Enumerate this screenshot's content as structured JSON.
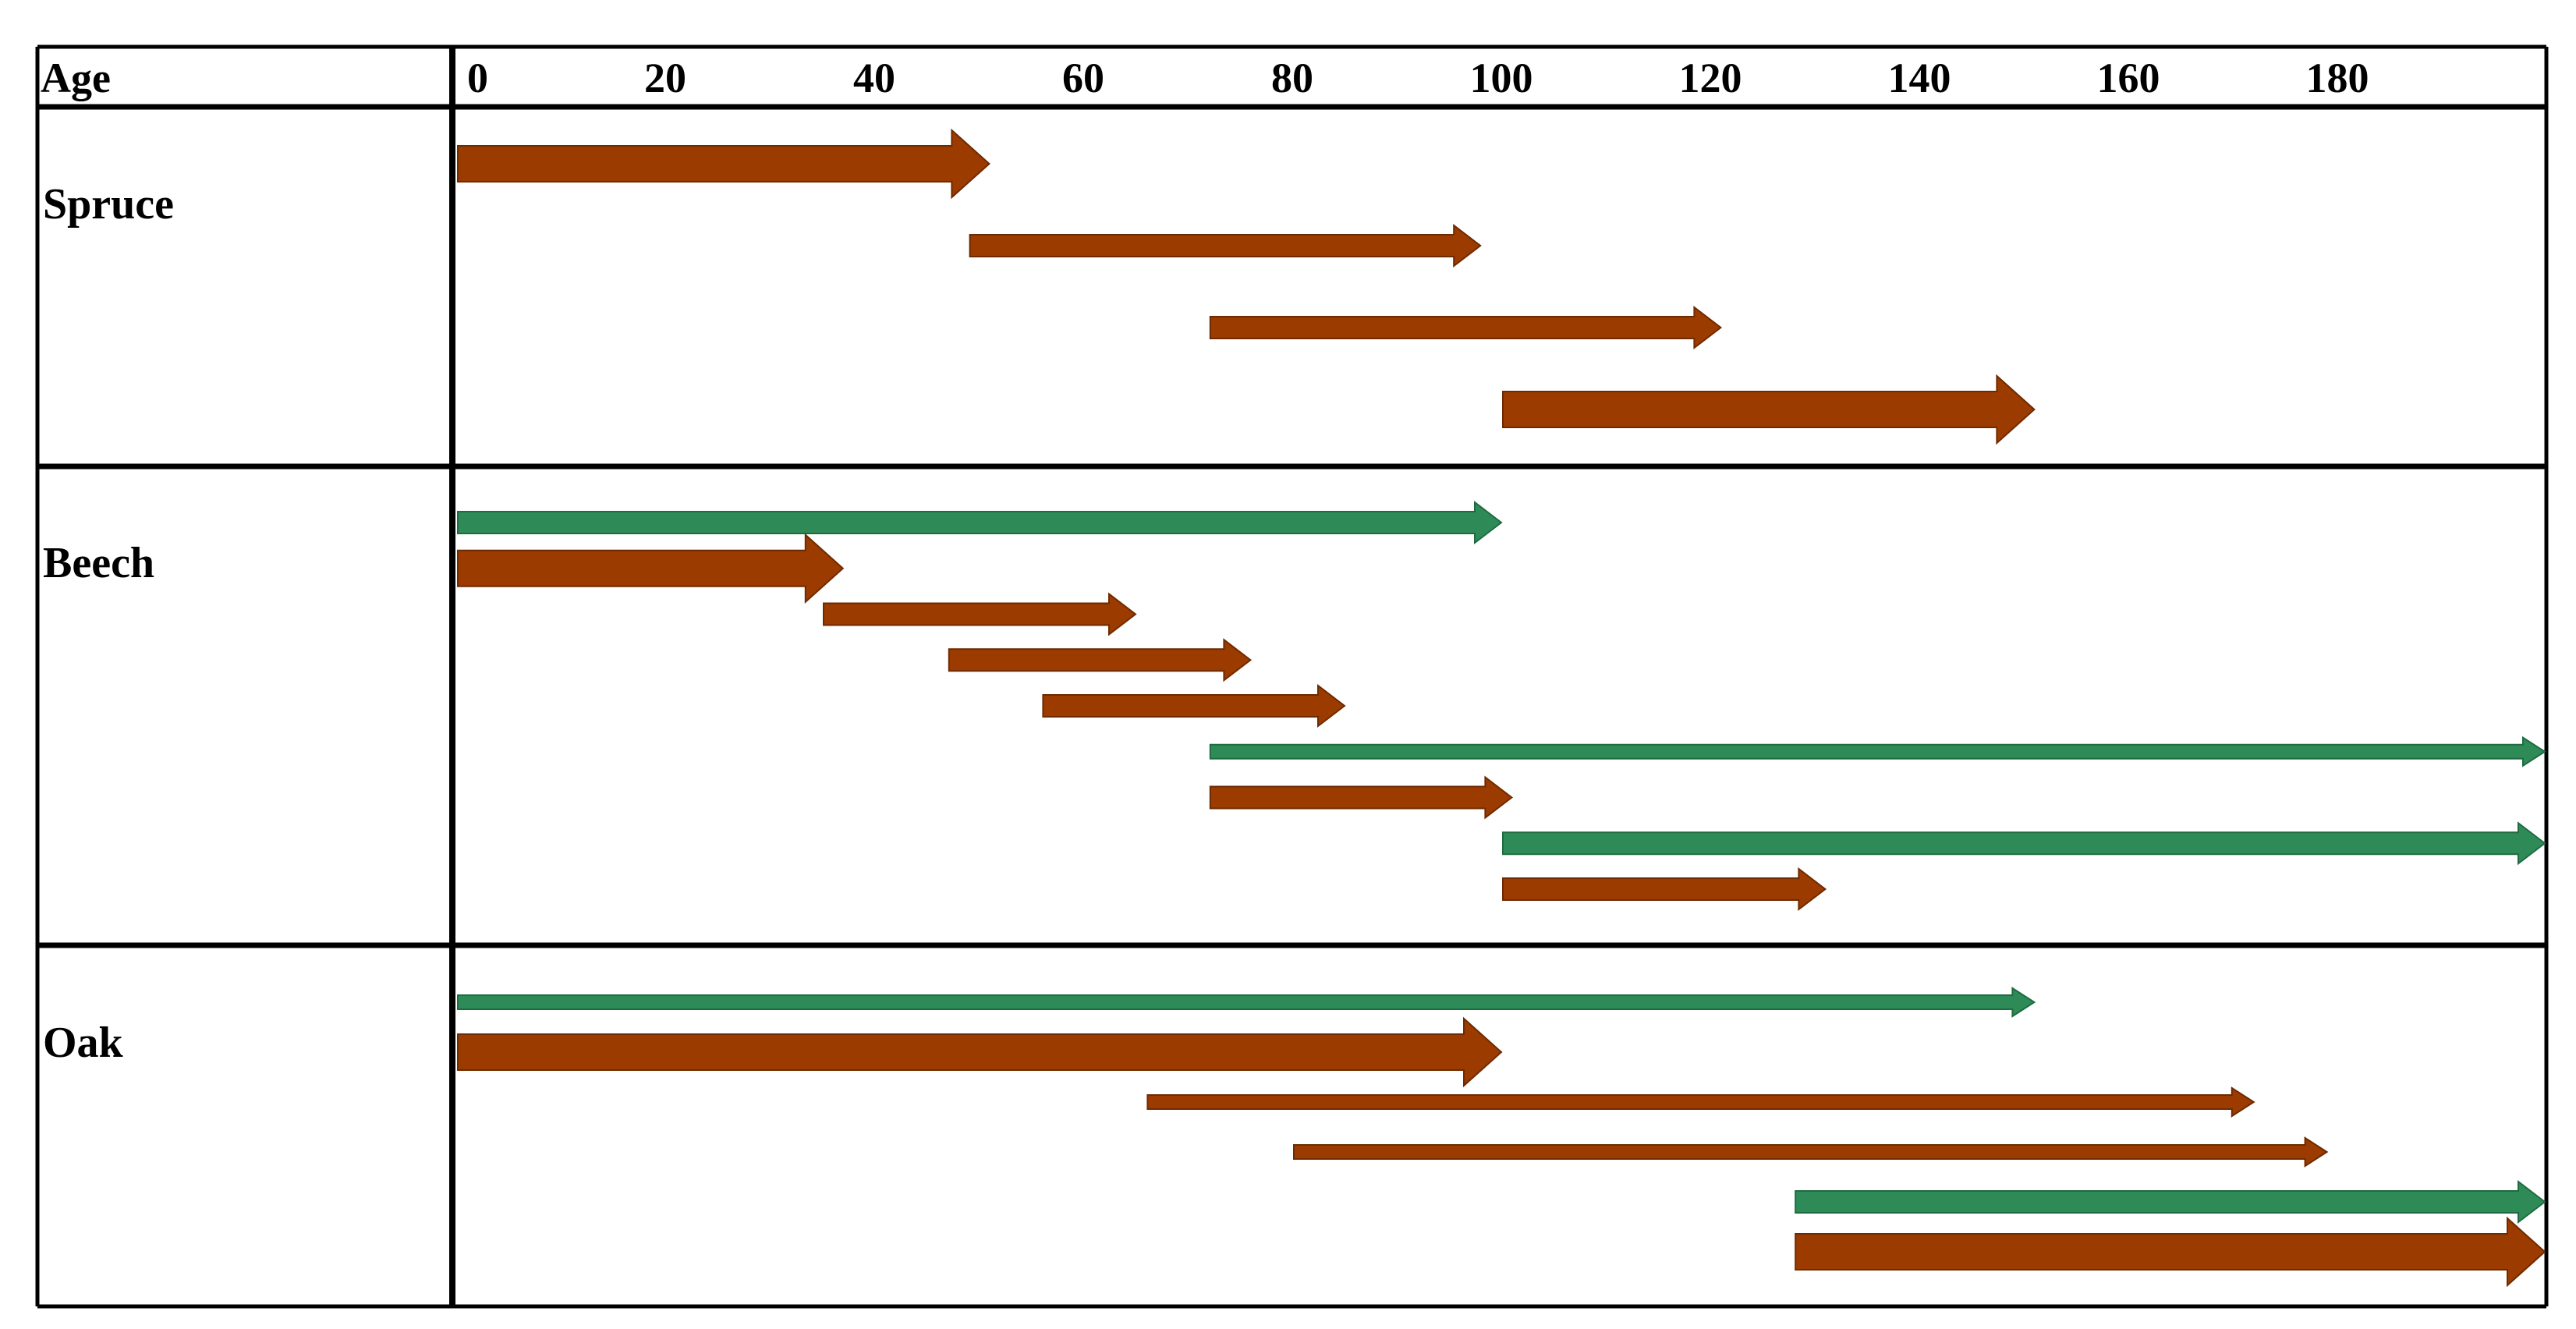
{
  "diagram": {
    "header_label": "Age",
    "axis": {
      "min": 0,
      "max": 200,
      "ticks": [
        0,
        20,
        40,
        60,
        80,
        100,
        120,
        140,
        160,
        180
      ]
    },
    "colors": {
      "brown": "#9C3B00",
      "green": "#2E8B57",
      "grid": "#000000"
    },
    "rows": [
      {
        "label": "Spruce",
        "arrows": [
          {
            "start": 0,
            "end": 51,
            "color": "brown",
            "weight": "thick"
          },
          {
            "start": 49,
            "end": 98,
            "color": "brown",
            "weight": "medium"
          },
          {
            "start": 72,
            "end": 121,
            "color": "brown",
            "weight": "medium"
          },
          {
            "start": 100,
            "end": 151,
            "color": "brown",
            "weight": "thick"
          }
        ]
      },
      {
        "label": "Beech",
        "arrows": [
          {
            "start": 0,
            "end": 100,
            "color": "green",
            "weight": "medium"
          },
          {
            "start": 0,
            "end": 37,
            "color": "brown",
            "weight": "thick"
          },
          {
            "start": 35,
            "end": 65,
            "color": "brown",
            "weight": "medium"
          },
          {
            "start": 47,
            "end": 76,
            "color": "brown",
            "weight": "medium"
          },
          {
            "start": 56,
            "end": 85,
            "color": "brown",
            "weight": "medium"
          },
          {
            "start": 72,
            "end": 200,
            "color": "green",
            "weight": "thin"
          },
          {
            "start": 72,
            "end": 101,
            "color": "brown",
            "weight": "medium"
          },
          {
            "start": 100,
            "end": 200,
            "color": "green",
            "weight": "medium"
          },
          {
            "start": 100,
            "end": 131,
            "color": "brown",
            "weight": "medium"
          }
        ]
      },
      {
        "label": "Oak",
        "arrows": [
          {
            "start": 0,
            "end": 151,
            "color": "green",
            "weight": "thin"
          },
          {
            "start": 0,
            "end": 100,
            "color": "brown",
            "weight": "thick"
          },
          {
            "start": 66,
            "end": 172,
            "color": "brown",
            "weight": "thin"
          },
          {
            "start": 80,
            "end": 179,
            "color": "brown",
            "weight": "thin"
          },
          {
            "start": 128,
            "end": 200,
            "color": "green",
            "weight": "medium"
          },
          {
            "start": 128,
            "end": 200,
            "color": "brown",
            "weight": "thick"
          }
        ]
      }
    ]
  }
}
